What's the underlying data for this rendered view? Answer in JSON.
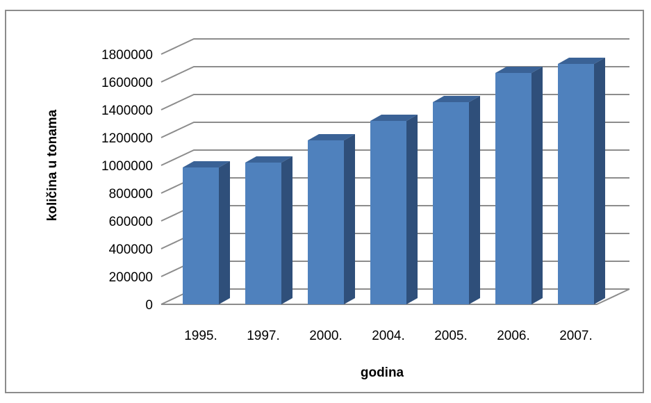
{
  "chart_data": {
    "type": "bar",
    "categories": [
      "1995.",
      "1997.",
      "2000.",
      "2004.",
      "2005.",
      "2006.",
      "2007."
    ],
    "values": [
      985000,
      1020000,
      1180000,
      1320000,
      1455000,
      1665000,
      1730000
    ],
    "xlabel": "godina",
    "ylabel": "količina u tonama",
    "ylim": [
      0,
      1800000
    ],
    "yticks": [
      0,
      200000,
      400000,
      600000,
      800000,
      1000000,
      1200000,
      1400000,
      1600000,
      1800000
    ],
    "grid": true,
    "legend": "none",
    "colors": {
      "bar_front": "#4f81bd",
      "bar_side": "#2f4f7a",
      "bar_top": "#3a6296",
      "grid": "#8c8c8c"
    }
  }
}
